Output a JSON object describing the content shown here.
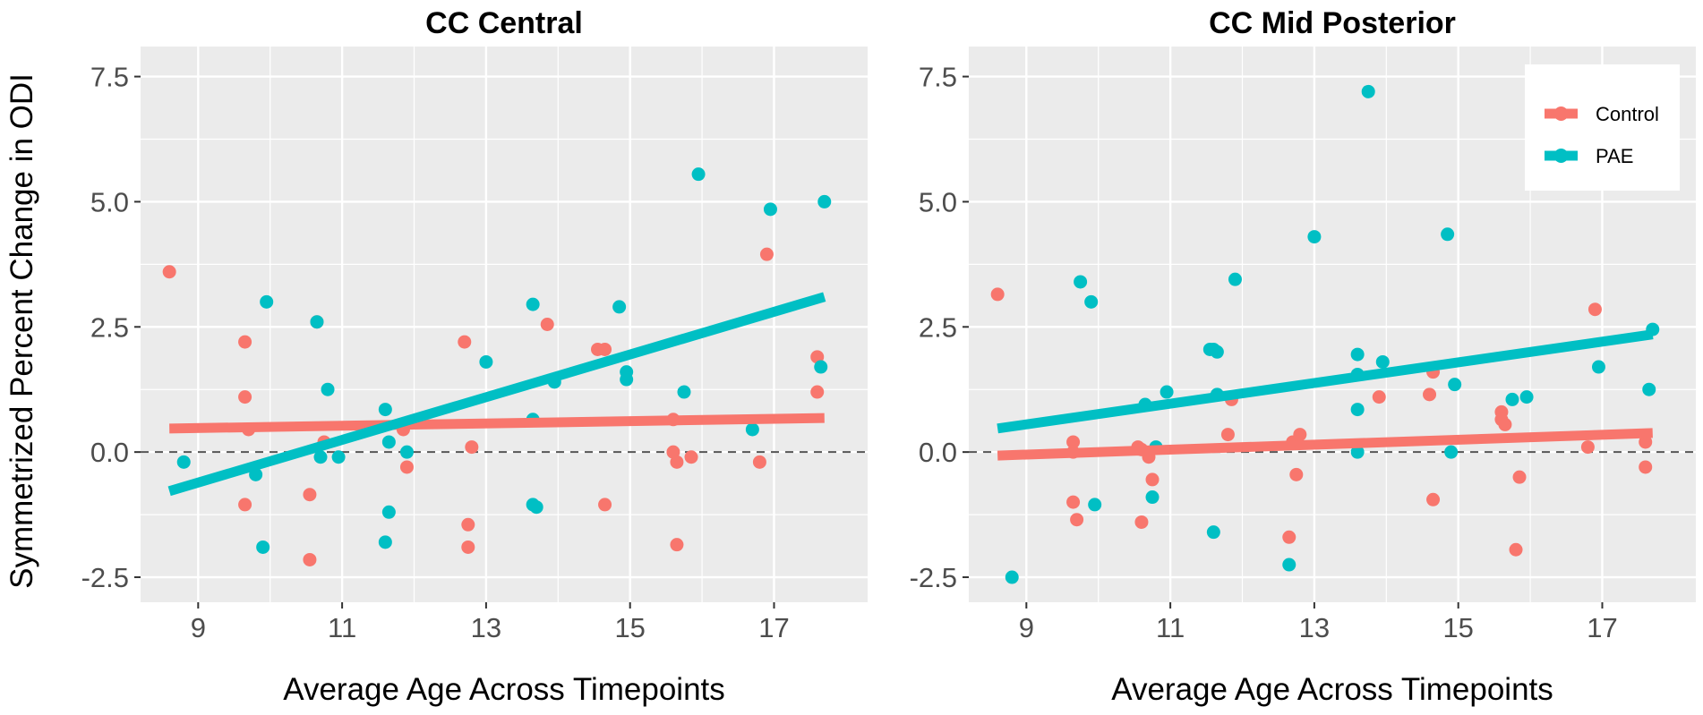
{
  "figure": {
    "ylabel": "Symmetrized Percent Change in ODI",
    "xlabel": "Average Age Across Timepoints",
    "legend": [
      {
        "label": "Control",
        "color": "#F8766D"
      },
      {
        "label": "PAE",
        "color": "#00BFC4"
      }
    ]
  },
  "chart_data": [
    {
      "type": "scatter",
      "title": "CC Central",
      "xlabel": "Average Age Across Timepoints",
      "ylabel": "Symmetrized Percent Change in ODI",
      "xlim": [
        8.2,
        18.3
      ],
      "ylim": [
        -3.0,
        8.1
      ],
      "xticks": [
        9,
        11,
        13,
        15,
        17
      ],
      "yticks": [
        -2.5,
        0.0,
        2.5,
        5.0,
        7.5
      ],
      "ytick_labels": [
        "-2.5",
        "0.0",
        "2.5",
        "5.0",
        "7.5"
      ],
      "reference_line": 0.0,
      "series": [
        {
          "name": "Control",
          "color": "#F8766D",
          "points": [
            [
              8.6,
              3.6
            ],
            [
              9.65,
              2.2
            ],
            [
              9.65,
              1.1
            ],
            [
              9.7,
              0.45
            ],
            [
              9.65,
              -1.05
            ],
            [
              10.55,
              -0.85
            ],
            [
              10.55,
              -2.15
            ],
            [
              10.65,
              2.6
            ],
            [
              10.75,
              0.2
            ],
            [
              11.85,
              0.45
            ],
            [
              11.9,
              -0.3
            ],
            [
              12.7,
              2.2
            ],
            [
              12.8,
              0.1
            ],
            [
              12.75,
              -1.45
            ],
            [
              12.75,
              -1.9
            ],
            [
              13.85,
              2.55
            ],
            [
              14.55,
              2.05
            ],
            [
              14.65,
              2.05
            ],
            [
              14.65,
              -1.05
            ],
            [
              15.6,
              0.65
            ],
            [
              15.6,
              0.0
            ],
            [
              15.65,
              -0.2
            ],
            [
              15.65,
              -1.85
            ],
            [
              15.85,
              -0.1
            ],
            [
              16.8,
              -0.2
            ],
            [
              16.9,
              3.95
            ],
            [
              17.6,
              1.9
            ],
            [
              17.6,
              1.2
            ]
          ],
          "trend": [
            [
              8.6,
              0.47
            ],
            [
              17.7,
              0.68
            ]
          ]
        },
        {
          "name": "PAE",
          "color": "#00BFC4",
          "points": [
            [
              8.8,
              -0.2
            ],
            [
              9.8,
              -0.45
            ],
            [
              9.9,
              -1.9
            ],
            [
              9.95,
              3.0
            ],
            [
              10.65,
              2.6
            ],
            [
              10.7,
              -0.1
            ],
            [
              10.8,
              1.25
            ],
            [
              10.95,
              -0.1
            ],
            [
              11.6,
              0.85
            ],
            [
              11.65,
              0.2
            ],
            [
              11.6,
              -1.8
            ],
            [
              11.65,
              -1.2
            ],
            [
              11.9,
              0.0
            ],
            [
              13.0,
              1.8
            ],
            [
              13.65,
              2.95
            ],
            [
              13.65,
              0.65
            ],
            [
              13.65,
              -1.05
            ],
            [
              13.7,
              -1.1
            ],
            [
              13.95,
              1.4
            ],
            [
              14.85,
              2.9
            ],
            [
              14.95,
              1.45
            ],
            [
              14.95,
              1.6
            ],
            [
              15.75,
              1.2
            ],
            [
              15.95,
              5.55
            ],
            [
              16.7,
              0.45
            ],
            [
              16.95,
              4.85
            ],
            [
              17.65,
              1.7
            ],
            [
              17.7,
              5.0
            ]
          ],
          "trend": [
            [
              8.6,
              -0.78
            ],
            [
              17.7,
              3.1
            ]
          ]
        }
      ]
    },
    {
      "type": "scatter",
      "title": "CC Mid Posterior",
      "xlabel": "Average Age Across Timepoints",
      "ylabel": "",
      "xlim": [
        8.2,
        18.3
      ],
      "ylim": [
        -3.0,
        8.1
      ],
      "xticks": [
        9,
        11,
        13,
        15,
        17
      ],
      "yticks": [
        -2.5,
        0.0,
        2.5,
        5.0,
        7.5
      ],
      "ytick_labels": [
        "-2.5",
        "0.0",
        "2.5",
        "5.0",
        "7.5"
      ],
      "reference_line": 0.0,
      "legend_position": "top-right",
      "series": [
        {
          "name": "Control",
          "color": "#F8766D",
          "points": [
            [
              8.6,
              3.15
            ],
            [
              9.65,
              0.2
            ],
            [
              9.65,
              0.0
            ],
            [
              9.65,
              -1.0
            ],
            [
              9.7,
              -1.35
            ],
            [
              10.55,
              0.1
            ],
            [
              10.6,
              0.05
            ],
            [
              10.7,
              -0.1
            ],
            [
              10.75,
              -0.55
            ],
            [
              10.6,
              -1.4
            ],
            [
              11.8,
              0.35
            ],
            [
              11.85,
              1.05
            ],
            [
              12.7,
              0.2
            ],
            [
              12.75,
              -0.45
            ],
            [
              12.65,
              -1.7
            ],
            [
              12.8,
              0.35
            ],
            [
              13.9,
              1.1
            ],
            [
              14.6,
              1.15
            ],
            [
              14.65,
              1.6
            ],
            [
              14.65,
              -0.95
            ],
            [
              15.6,
              0.8
            ],
            [
              15.6,
              0.65
            ],
            [
              15.65,
              0.55
            ],
            [
              15.85,
              -0.5
            ],
            [
              15.8,
              -1.95
            ],
            [
              16.8,
              0.1
            ],
            [
              16.9,
              2.85
            ],
            [
              17.6,
              0.2
            ],
            [
              17.6,
              -0.3
            ]
          ],
          "trend": [
            [
              8.6,
              -0.07
            ],
            [
              17.7,
              0.38
            ]
          ]
        },
        {
          "name": "PAE",
          "color": "#00BFC4",
          "points": [
            [
              8.8,
              -2.5
            ],
            [
              9.75,
              3.4
            ],
            [
              9.9,
              3.0
            ],
            [
              9.95,
              -1.05
            ],
            [
              10.65,
              0.95
            ],
            [
              10.75,
              -0.9
            ],
            [
              10.8,
              0.1
            ],
            [
              10.95,
              1.2
            ],
            [
              11.55,
              2.05
            ],
            [
              11.6,
              2.05
            ],
            [
              11.65,
              2.0
            ],
            [
              11.65,
              1.15
            ],
            [
              11.6,
              -1.6
            ],
            [
              11.9,
              3.45
            ],
            [
              13.0,
              4.3
            ],
            [
              12.65,
              -2.25
            ],
            [
              13.6,
              1.95
            ],
            [
              13.6,
              1.55
            ],
            [
              13.6,
              0.85
            ],
            [
              13.6,
              0.0
            ],
            [
              13.75,
              7.2
            ],
            [
              13.95,
              1.8
            ],
            [
              14.85,
              4.35
            ],
            [
              14.95,
              1.35
            ],
            [
              14.9,
              0.0
            ],
            [
              15.75,
              1.05
            ],
            [
              15.95,
              1.1
            ],
            [
              16.95,
              1.7
            ],
            [
              17.7,
              2.45
            ],
            [
              17.65,
              1.25
            ]
          ],
          "trend": [
            [
              8.6,
              0.47
            ],
            [
              17.7,
              2.35
            ]
          ]
        }
      ]
    }
  ]
}
